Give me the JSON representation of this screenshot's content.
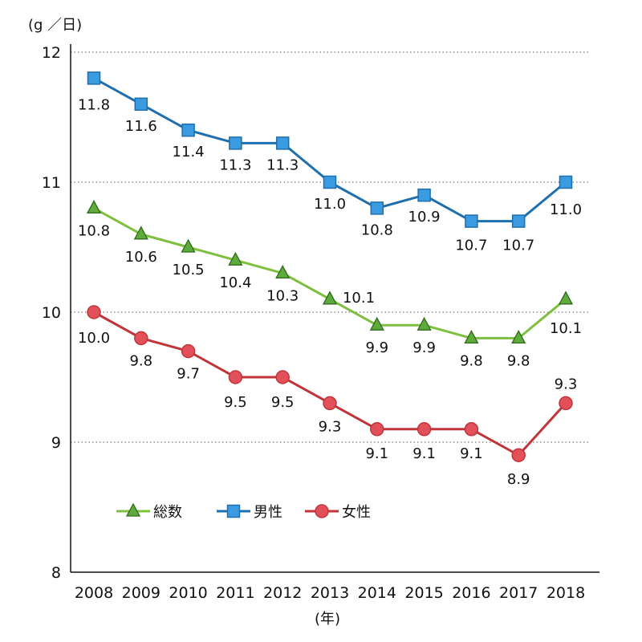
{
  "chart_data": {
    "type": "line",
    "y_unit_label": "(g ／日)",
    "x_unit_label": "(年)",
    "categories": [
      "2008",
      "2009",
      "2010",
      "2011",
      "2012",
      "2013",
      "2014",
      "2015",
      "2016",
      "2017",
      "2018"
    ],
    "ylim": [
      8,
      12
    ],
    "yticks": [
      "8",
      "9",
      "10",
      "11",
      "12"
    ],
    "grid": "horizontal dotted",
    "legend_position": "bottom-left",
    "series": [
      {
        "name": "総数",
        "color": "#7fbf3f",
        "marker": "triangle",
        "values": [
          10.8,
          10.6,
          10.5,
          10.4,
          10.3,
          10.1,
          9.9,
          9.9,
          9.8,
          9.8,
          10.1
        ],
        "labels": [
          "10.8",
          "10.6",
          "10.5",
          "10.4",
          "10.3",
          "10.1",
          "9.9",
          "9.9",
          "9.8",
          "9.8",
          "10.1"
        ]
      },
      {
        "name": "男性",
        "color": "#1f6fae",
        "marker": "square",
        "values": [
          11.8,
          11.6,
          11.4,
          11.3,
          11.3,
          11.0,
          10.8,
          10.9,
          10.7,
          10.7,
          11.0
        ],
        "labels": [
          "11.8",
          "11.6",
          "11.4",
          "11.3",
          "11.3",
          "11.0",
          "10.8",
          "10.9",
          "10.7",
          "10.7",
          "11.0"
        ]
      },
      {
        "name": "女性",
        "color": "#c0353a",
        "marker": "circle",
        "values": [
          10.0,
          9.8,
          9.7,
          9.5,
          9.5,
          9.3,
          9.1,
          9.1,
          9.1,
          8.9,
          9.3
        ],
        "labels": [
          "10.0",
          "9.8",
          "9.7",
          "9.5",
          "9.5",
          "9.3",
          "9.1",
          "9.1",
          "9.1",
          "8.9",
          "9.3"
        ]
      }
    ]
  }
}
